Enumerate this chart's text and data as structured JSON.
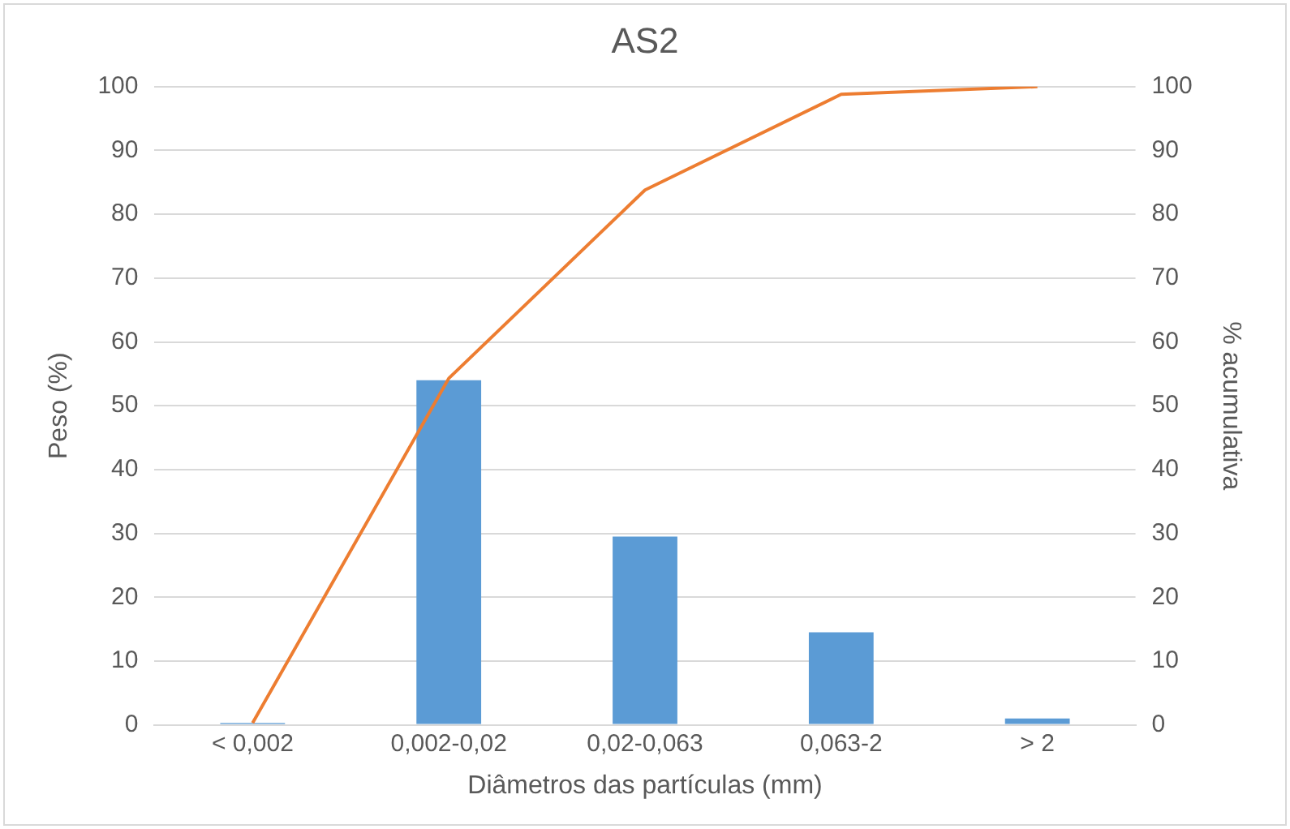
{
  "chart_data": {
    "type": "bar",
    "title": "AS2",
    "xlabel": "Diâmetros das partículas (mm)",
    "ylabel": "Peso (%)",
    "y2label": "% acumulativa",
    "categories": [
      "< 0,002",
      "0,002-0,02",
      "0,02-0,063",
      "0,063-2",
      "> 2"
    ],
    "series": [
      {
        "color": "#5b9bd5",
        "values": [
          0.3,
          54,
          29.5,
          14.5,
          1
        ]
      },
      {
        "type": "line",
        "axis": "y2",
        "color": "#ed7d31",
        "values": [
          0.3,
          54.3,
          83.8,
          98.8,
          100
        ]
      }
    ],
    "ylim": [
      0,
      100
    ],
    "yticks": [
      0,
      10,
      20,
      30,
      40,
      50,
      60,
      70,
      80,
      90,
      100
    ],
    "y2lim": [
      0,
      100
    ],
    "y2ticks": [
      0,
      10,
      20,
      30,
      40,
      50,
      60,
      70,
      80,
      90,
      100
    ],
    "grid": "y",
    "legend": false,
    "marker": "none",
    "line_style": "solid"
  }
}
